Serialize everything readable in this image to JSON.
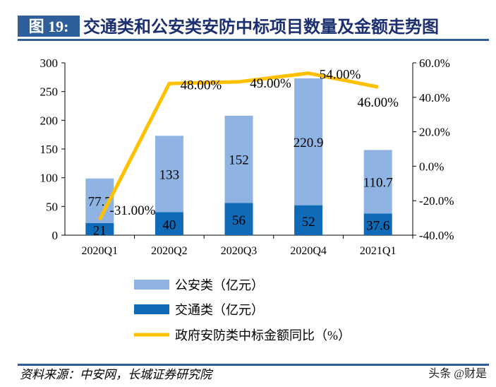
{
  "header": {
    "figure_label": "图 19:",
    "title": "交通类和公安类安防中标项目数量及金额走势图"
  },
  "source": "资料来源：中安网，长城证券研究院",
  "watermark": "头条 @财是",
  "colors": {
    "header_bg": "#2e5f9a",
    "public_security": "#8fb4e3",
    "transport": "#0f6ab8",
    "yoy_line": "#ffc000"
  },
  "chart_data": {
    "type": "bar",
    "stacked": true,
    "categories": [
      "2020Q1",
      "2020Q2",
      "2020Q3",
      "2020Q4",
      "2021Q1"
    ],
    "series": [
      {
        "name": "交通类（亿元）",
        "values": [
          21,
          40,
          56,
          52,
          37.6
        ],
        "labels": [
          "21",
          "40",
          "56",
          "52",
          "37.6"
        ],
        "axis": "left"
      },
      {
        "name": "公安类（亿元）",
        "values": [
          77.7,
          133,
          152,
          220.9,
          110.7
        ],
        "labels": [
          "77.7",
          "133",
          "152",
          "220.9",
          "110.7"
        ],
        "axis": "left"
      },
      {
        "name": "政府安防类中标金额同比（%）",
        "type": "line",
        "values": [
          -31,
          48,
          49,
          54,
          46
        ],
        "labels": [
          "-31.00%",
          "48.00%",
          "49.00%",
          "54.00%",
          "46.00%"
        ],
        "axis": "right"
      }
    ],
    "ylim": [
      0,
      300
    ],
    "yticks": [
      "0",
      "50",
      "100",
      "150",
      "200",
      "250",
      "300"
    ],
    "y2lim": [
      -40,
      60
    ],
    "y2ticks": [
      "-40.0%",
      "-20.0%",
      "0.0%",
      "20.0%",
      "40.0%",
      "60.0%"
    ],
    "grid": false,
    "legend_placement": "bottom"
  }
}
